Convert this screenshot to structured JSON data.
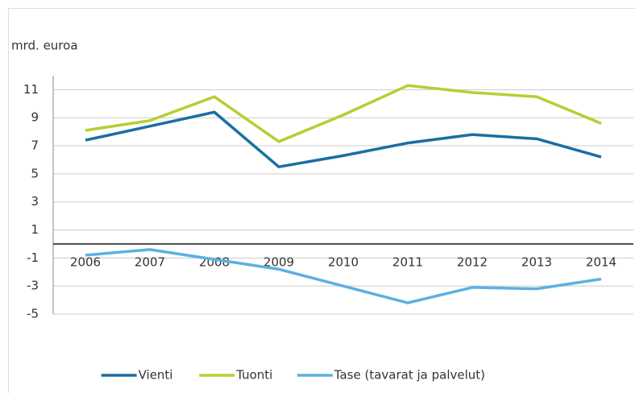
{
  "chart_data": {
    "type": "line",
    "y_label": "mrd. euroa",
    "categories": [
      "2006",
      "2007",
      "2008",
      "2009",
      "2010",
      "2011",
      "2012",
      "2013",
      "2014"
    ],
    "series": [
      {
        "name": "Vienti",
        "color": "#1a6fa3",
        "values": [
          7.4,
          8.4,
          9.4,
          5.5,
          6.3,
          7.2,
          7.8,
          7.5,
          6.2
        ]
      },
      {
        "name": "Tuonti",
        "color": "#b5cf32",
        "values": [
          8.1,
          8.8,
          10.5,
          7.3,
          9.2,
          11.3,
          10.8,
          10.5,
          8.6
        ]
      },
      {
        "name": "Tase (tavarat ja palvelut)",
        "color": "#5cb0e3",
        "values": [
          -0.8,
          -0.4,
          -1.1,
          -1.8,
          -3.0,
          -4.2,
          -3.1,
          -3.2,
          -2.5
        ]
      }
    ],
    "ylim": [
      -5,
      12
    ],
    "yticks": [
      -5,
      -3,
      -1,
      1,
      3,
      5,
      7,
      9,
      11
    ],
    "grid": true,
    "legend": "bottom"
  }
}
